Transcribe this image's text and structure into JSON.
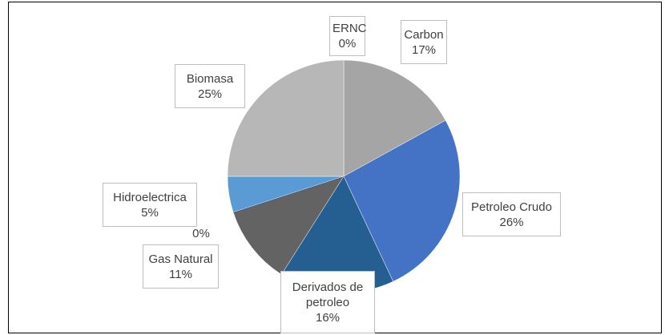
{
  "chart_data": {
    "type": "pie",
    "categories": [
      "ERNC",
      "Carbon",
      "Petroleo Crudo",
      "Derivados de petroleo",
      "Gas Natural",
      null,
      "Hidroelectrica",
      "Biomasa"
    ],
    "values": [
      0,
      17,
      26,
      16,
      11,
      0,
      5,
      25
    ],
    "value_labels": [
      "0%",
      "17%",
      "26%",
      "16%",
      "11%",
      "0%",
      "5%",
      "25%"
    ],
    "colors": [
      "#4472c4",
      "#a5a5a5",
      "#4472c4",
      "#255e91",
      "#636363",
      "#264478",
      "#5b9bd5",
      "#b7b7b7"
    ]
  }
}
